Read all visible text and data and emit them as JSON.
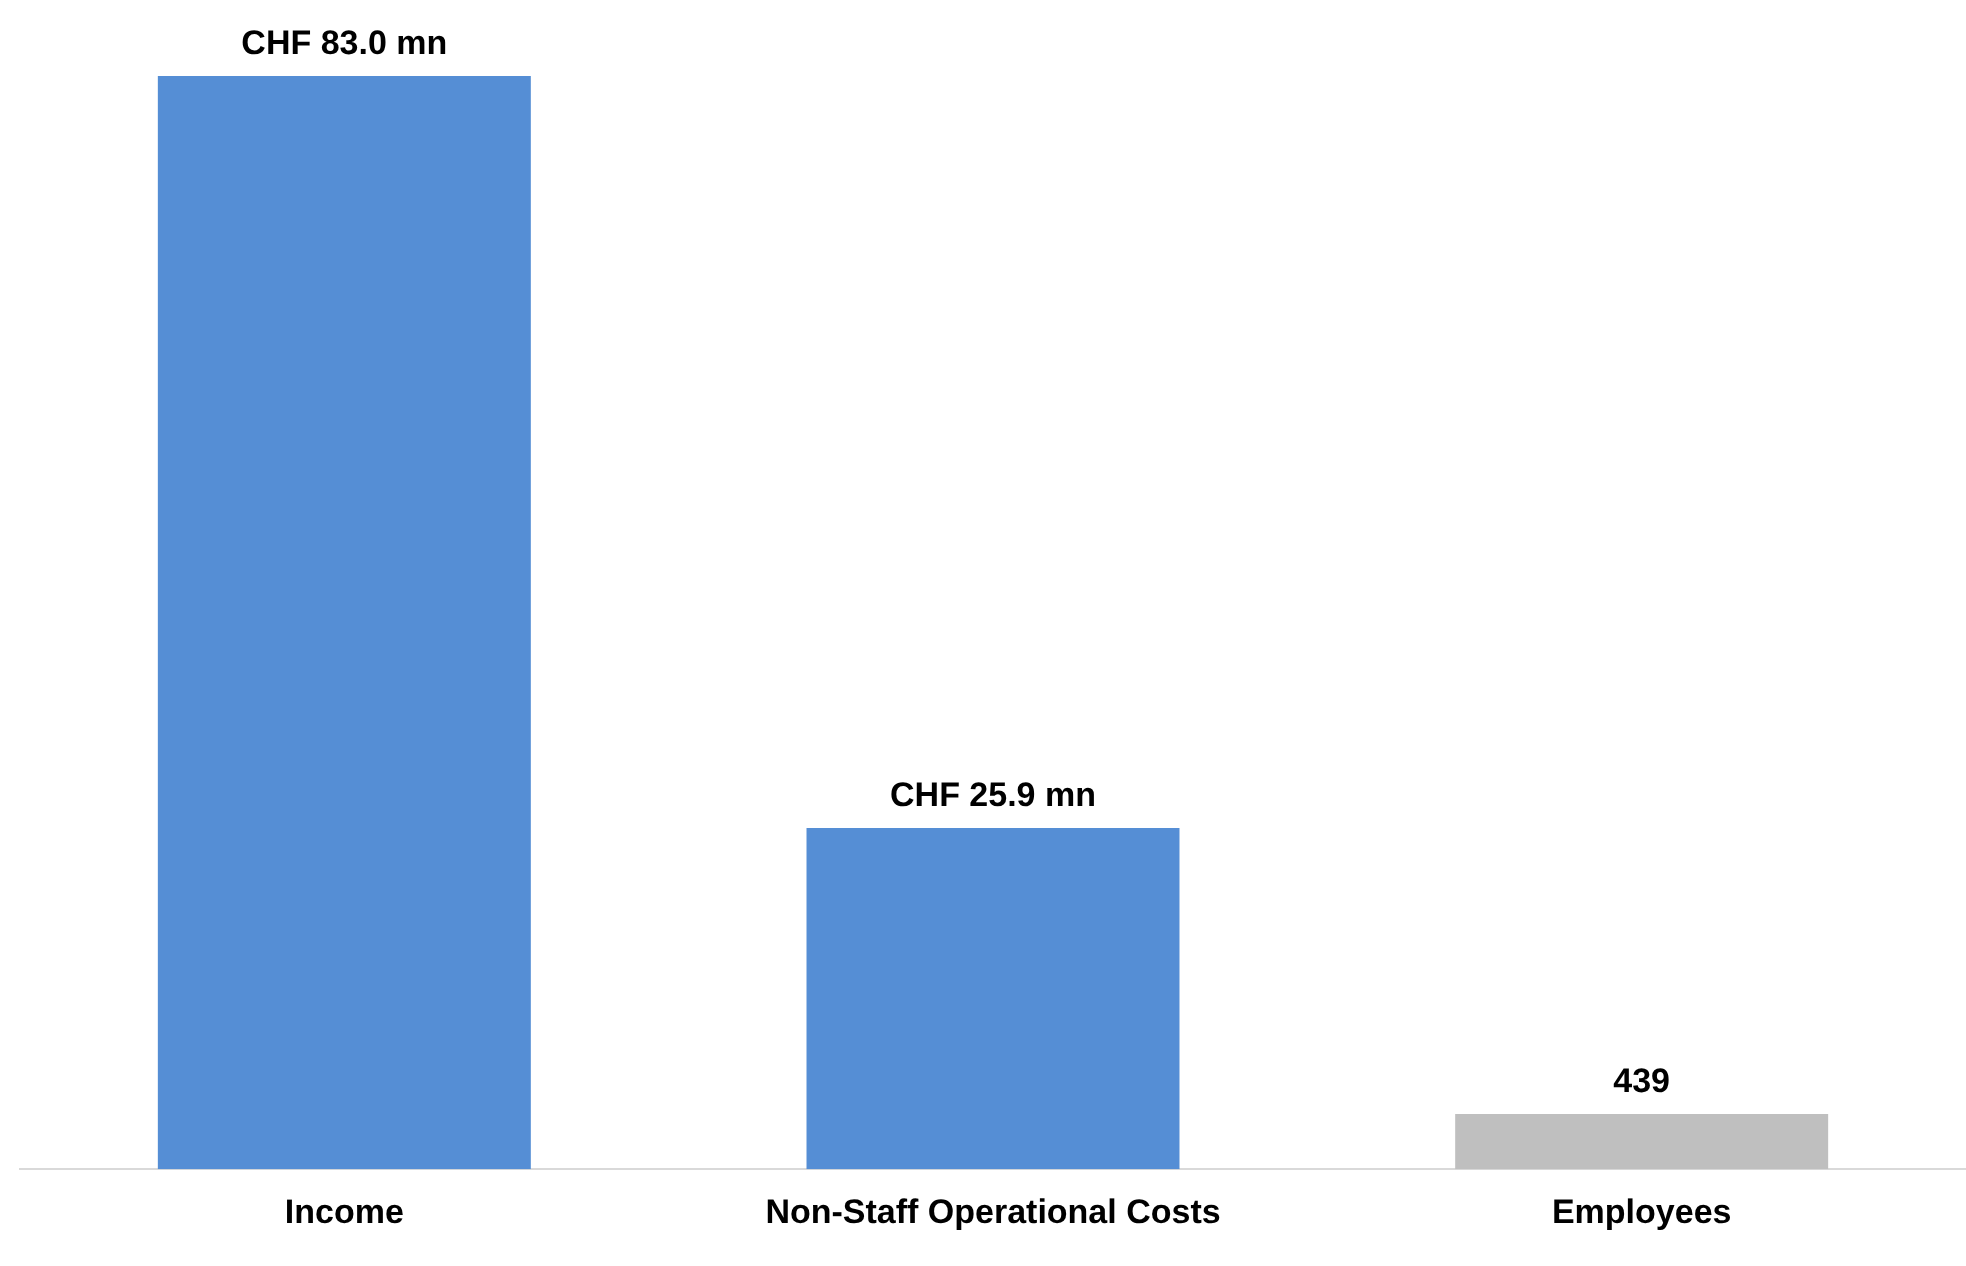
{
  "chart_data": {
    "type": "bar",
    "categories": [
      "Income",
      "Non-Staff Operational Costs",
      "Employees"
    ],
    "series": [
      {
        "color": "#558ed5",
        "values": [
          83000000,
          25900000,
          null
        ],
        "value_labels": [
          "CHF 83.0 mn",
          "CHF 25.9 mn",
          null
        ]
      },
      {
        "color": "#bfbfbf",
        "axis": "y2",
        "values": [
          null,
          null,
          439
        ],
        "value_labels": [
          null,
          null,
          "439"
        ]
      }
    ],
    "tick_labels": "x",
    "grid": false,
    "legend": false
  }
}
